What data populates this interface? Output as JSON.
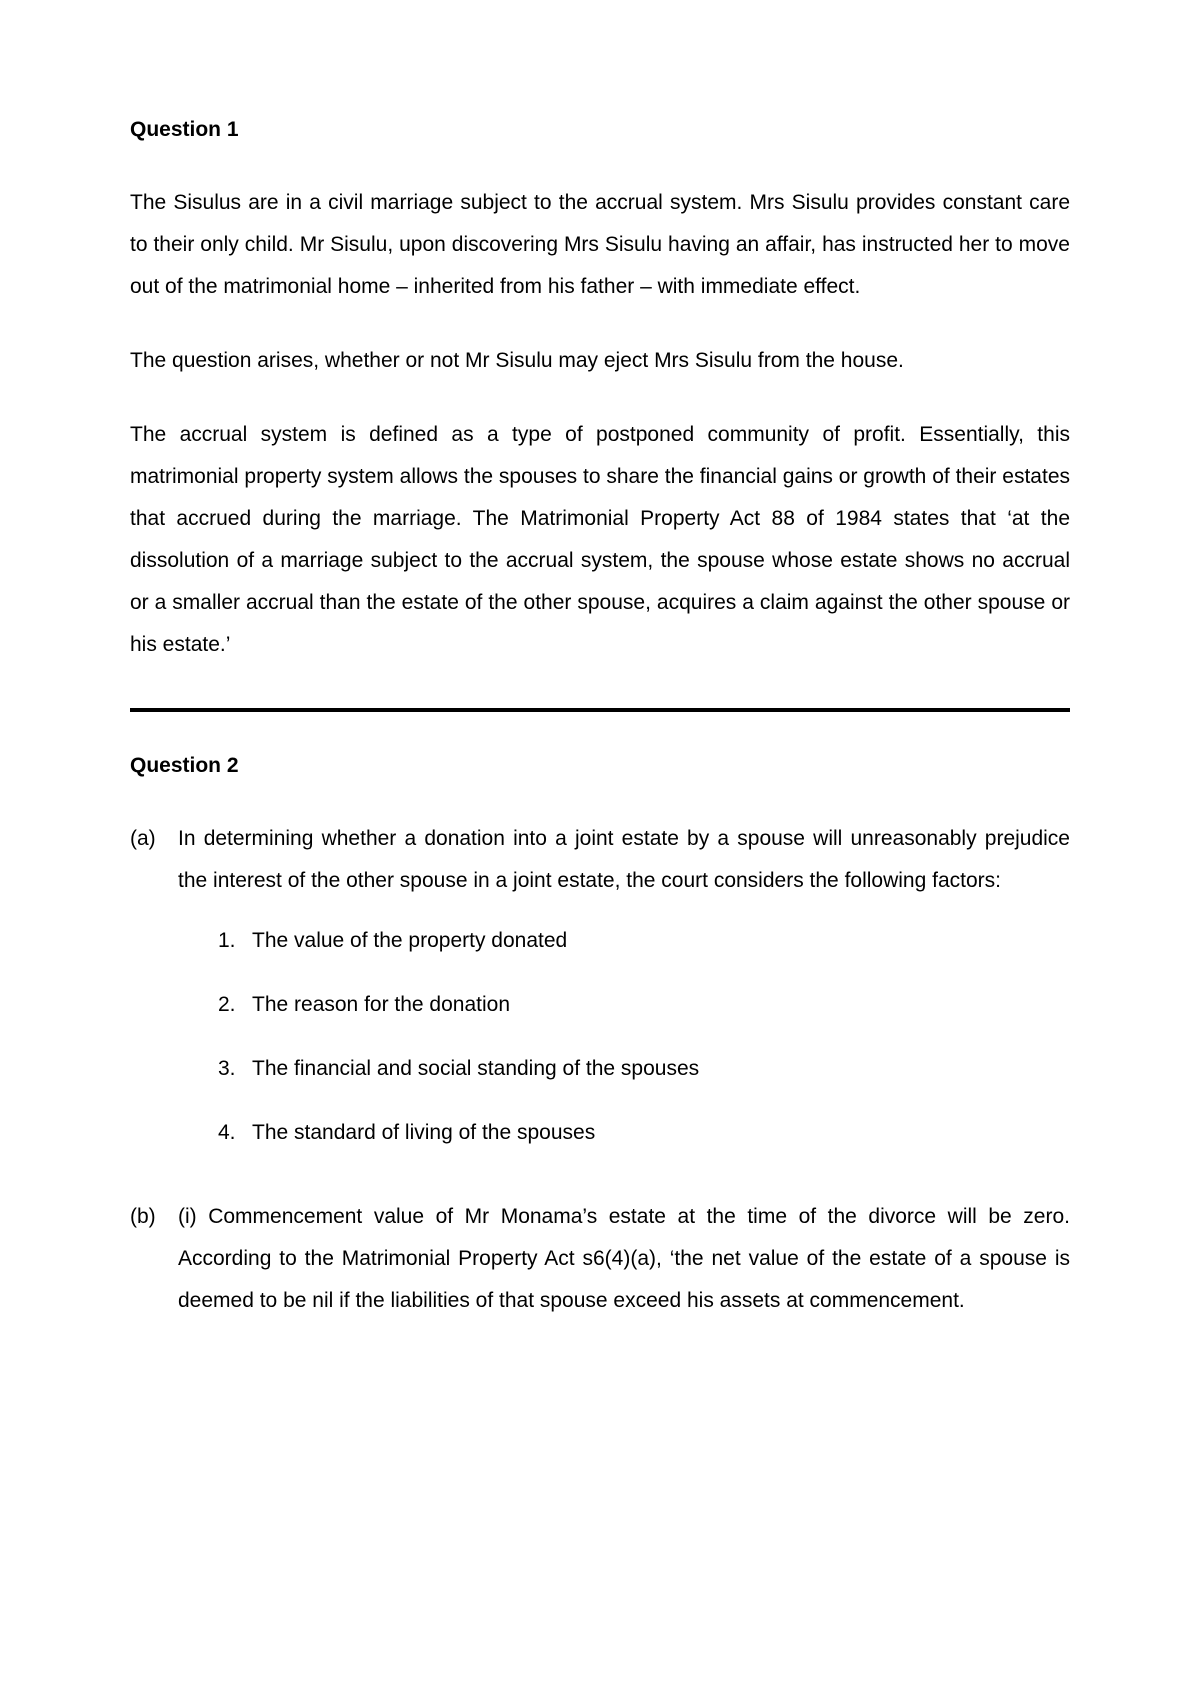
{
  "q1": {
    "heading": "Question 1",
    "para1": "The Sisulus are in a civil marriage subject to the accrual system. Mrs Sisulu provides constant care to their only child. Mr Sisulu, upon discovering Mrs Sisulu having an affair, has instructed her to move out of the matrimonial home – inherited from his father – with immediate effect.",
    "para2": "The question arises, whether or not Mr Sisulu may eject Mrs Sisulu from the house.",
    "para3": "The accrual system is defined as a type of postponed community of profit. Essentially, this matrimonial property system allows the spouses to share the financial gains or growth of their estates that accrued during the marriage. The Matrimonial Property Act 88 of 1984 states that ‘at the dissolution of a marriage subject to the accrual  system, the spouse whose estate shows no accrual or a smaller accrual than the estate of the other spouse, acquires a claim against the other spouse or his estate.’"
  },
  "q2": {
    "heading": "Question 2",
    "a": {
      "marker": "(a)",
      "intro": "In determining whether a donation into a joint estate by a spouse will unreasonably prejudice the interest of the other spouse in a joint estate, the court considers the following factors:",
      "items": [
        "The value of the property donated",
        "The reason for the donation",
        "The financial and social standing of the spouses",
        "The standard of living of the spouses"
      ]
    },
    "b": {
      "marker": "(b)",
      "text": "(i) Commencement value of Mr Monama’s estate at the time of the divorce will be zero. According to the Matrimonial Property Act s6(4)(a), ‘the net value of the estate of a spouse is deemed to be nil if the liabilities of that spouse exceed his assets at commencement."
    }
  },
  "numbers": [
    "1.",
    "2.",
    "3.",
    "4."
  ]
}
